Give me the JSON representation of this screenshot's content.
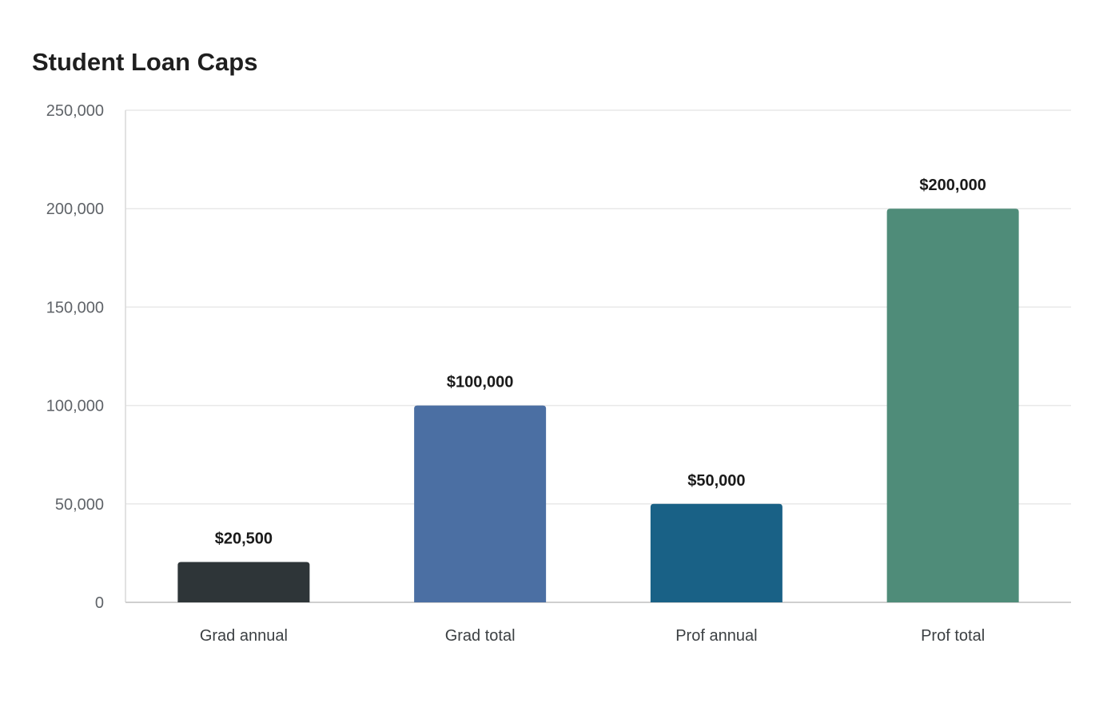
{
  "chart_data": {
    "type": "bar",
    "title": "Student Loan Caps",
    "xlabel": "",
    "ylabel": "",
    "categories": [
      "Grad annual",
      "Grad total",
      "Prof annual",
      "Prof total"
    ],
    "values": [
      20500,
      100000,
      50000,
      200000
    ],
    "data_labels": [
      "$20,500",
      "$100,000",
      "$50,000",
      "$200,000"
    ],
    "bar_colors": [
      "#2e3538",
      "#4b6fa3",
      "#196186",
      "#4f8c79"
    ],
    "ylim": [
      0,
      250000
    ],
    "yticks": [
      0,
      50000,
      100000,
      150000,
      200000,
      250000
    ],
    "ytick_labels": [
      "0",
      "50,000",
      "100,000",
      "150,000",
      "200,000",
      "250,000"
    ],
    "grid": true,
    "legend": "none"
  }
}
